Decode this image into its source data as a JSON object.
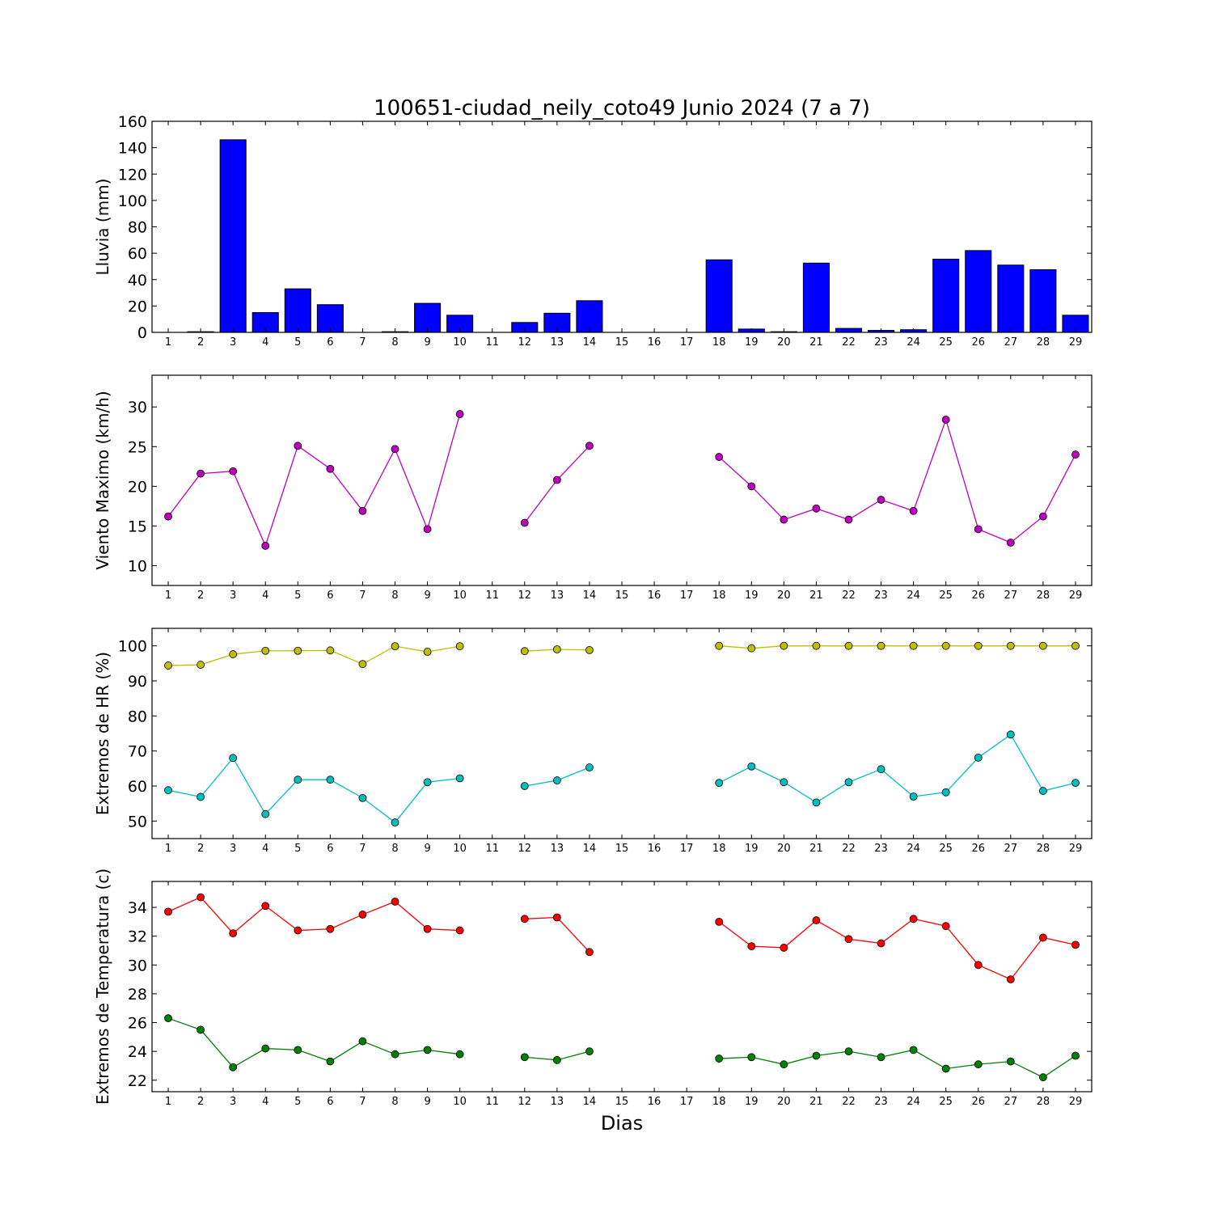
{
  "chart_data": [
    {
      "type": "bar",
      "title": "100651-ciudad_neily_coto49 Junio 2024  (7 a 7)",
      "ylabel": "Lluvia (mm)",
      "xlabel": "",
      "ylim": [
        0,
        160
      ],
      "yticks": [
        0,
        20,
        40,
        60,
        80,
        100,
        120,
        140,
        160
      ],
      "x": [
        1,
        2,
        3,
        4,
        5,
        6,
        7,
        8,
        9,
        10,
        11,
        12,
        13,
        14,
        15,
        16,
        17,
        18,
        19,
        20,
        21,
        22,
        23,
        24,
        25,
        26,
        27,
        28,
        29
      ],
      "series": [
        {
          "color": "#0000ff",
          "values": [
            0,
            0.5,
            146,
            15,
            33,
            21,
            0,
            0.5,
            22,
            13,
            0,
            7.5,
            14.5,
            24,
            0,
            0,
            0,
            55,
            2.5,
            0.5,
            52.5,
            3,
            1.5,
            2,
            55.5,
            62,
            51,
            47.5,
            13
          ]
        }
      ]
    },
    {
      "type": "line",
      "title": "",
      "ylabel": "Viento Maximo (km/h)",
      "xlabel": "",
      "ylim": [
        7.5,
        34
      ],
      "yticks": [
        10,
        15,
        20,
        25,
        30
      ],
      "x": [
        1,
        2,
        3,
        4,
        5,
        6,
        7,
        8,
        9,
        10,
        11,
        12,
        13,
        14,
        15,
        16,
        17,
        18,
        19,
        20,
        21,
        22,
        23,
        24,
        25,
        26,
        27,
        28,
        29
      ],
      "series": [
        {
          "color": "#bf00bf",
          "values": [
            16.2,
            21.6,
            21.9,
            12.5,
            25.1,
            22.2,
            16.9,
            24.7,
            14.6,
            29.1,
            null,
            15.4,
            20.8,
            25.1,
            null,
            null,
            null,
            23.7,
            20.0,
            15.8,
            17.2,
            15.8,
            18.3,
            16.9,
            28.4,
            14.6,
            12.9,
            16.2,
            24.0
          ]
        }
      ]
    },
    {
      "type": "line",
      "title": "",
      "ylabel": "Extremos de HR (%)",
      "xlabel": "",
      "ylim": [
        45,
        105
      ],
      "yticks": [
        50,
        60,
        70,
        80,
        90,
        100
      ],
      "x": [
        1,
        2,
        3,
        4,
        5,
        6,
        7,
        8,
        9,
        10,
        11,
        12,
        13,
        14,
        15,
        16,
        17,
        18,
        19,
        20,
        21,
        22,
        23,
        24,
        25,
        26,
        27,
        28,
        29
      ],
      "series": [
        {
          "color": "#bfbf00",
          "values": [
            94.4,
            94.6,
            97.6,
            98.6,
            98.6,
            98.7,
            94.8,
            99.9,
            98.3,
            99.9,
            null,
            98.5,
            99.0,
            98.8,
            null,
            null,
            null,
            100,
            99.3,
            100,
            100,
            100,
            100,
            100,
            100,
            100,
            100,
            100,
            100
          ]
        },
        {
          "color": "#00bfbf",
          "values": [
            58.8,
            56.9,
            68.0,
            52.0,
            61.8,
            61.8,
            56.6,
            49.6,
            61.1,
            62.2,
            null,
            60.0,
            61.6,
            65.3,
            null,
            null,
            null,
            60.9,
            65.6,
            61.1,
            55.3,
            61.1,
            64.8,
            57.0,
            58.2,
            68.1,
            74.7,
            58.6,
            60.9
          ]
        }
      ]
    },
    {
      "type": "line",
      "title": "",
      "ylabel": "Extremos de Temperatura (c)",
      "xlabel": "Dias",
      "ylim": [
        21.2,
        35.8
      ],
      "yticks": [
        22,
        24,
        26,
        28,
        30,
        32,
        34
      ],
      "x": [
        1,
        2,
        3,
        4,
        5,
        6,
        7,
        8,
        9,
        10,
        11,
        12,
        13,
        14,
        15,
        16,
        17,
        18,
        19,
        20,
        21,
        22,
        23,
        24,
        25,
        26,
        27,
        28,
        29
      ],
      "series": [
        {
          "color": "#ff0000",
          "values": [
            33.7,
            34.7,
            32.2,
            34.1,
            32.4,
            32.5,
            33.5,
            34.4,
            32.5,
            32.4,
            null,
            33.2,
            33.3,
            30.9,
            null,
            null,
            null,
            33.0,
            31.3,
            31.2,
            33.1,
            31.8,
            31.5,
            33.2,
            32.7,
            30.0,
            29.0,
            31.9,
            31.4
          ]
        },
        {
          "color": "#008000",
          "values": [
            26.3,
            25.5,
            22.9,
            24.2,
            24.1,
            23.3,
            24.7,
            23.8,
            24.1,
            23.8,
            null,
            23.6,
            23.4,
            24.0,
            null,
            null,
            null,
            23.5,
            23.6,
            23.1,
            23.7,
            24.0,
            23.6,
            24.1,
            22.8,
            23.1,
            23.3,
            22.2,
            23.7
          ]
        }
      ]
    }
  ]
}
